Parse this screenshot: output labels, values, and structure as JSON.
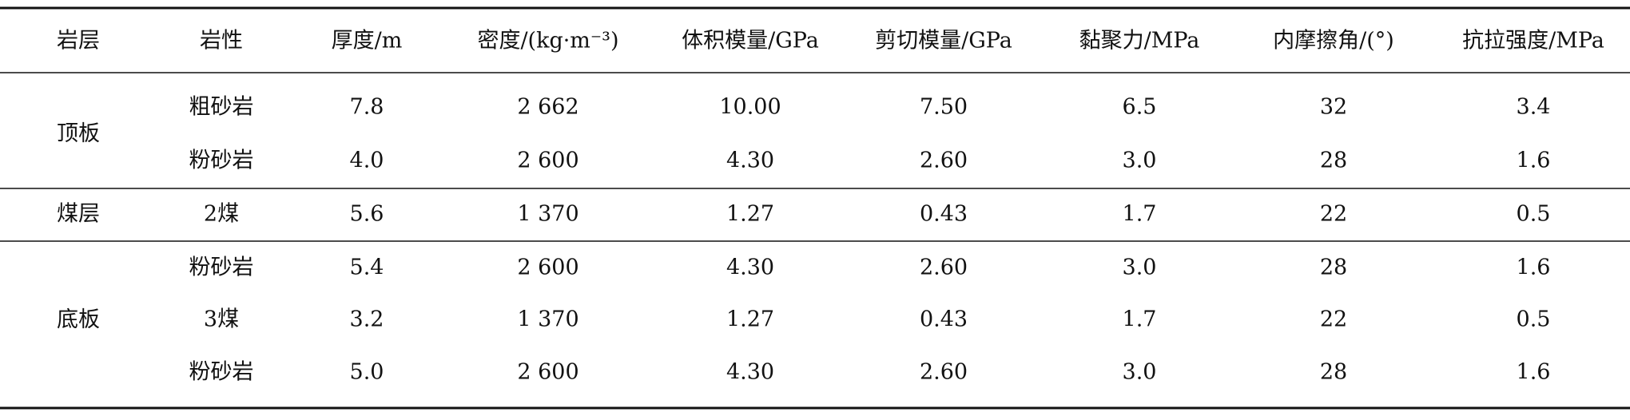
{
  "table": {
    "header": [
      "岩层",
      "岩性",
      "厚度/m",
      "密度/(kg·m⁻³)",
      "体积模量/GPa",
      "剪切模量/GPa",
      "黏聚力/MPa",
      "内摩擦角/(°)",
      "抗拉强度/MPa"
    ],
    "groups": [
      {
        "name": "顶板",
        "rows": [
          [
            "粗砂岩",
            "7.8",
            "2 662",
            "10.00",
            "7.50",
            "6.5",
            "32",
            "3.4"
          ],
          [
            "粉砂岩",
            "4.0",
            "2 600",
            "4.30",
            "2.60",
            "3.0",
            "28",
            "1.6"
          ]
        ]
      },
      {
        "name": "煤层",
        "rows": [
          [
            "2煤",
            "5.6",
            "1 370",
            "1.27",
            "0.43",
            "1.7",
            "22",
            "0.5"
          ]
        ]
      },
      {
        "name": "底板",
        "rows": [
          [
            "粉砂岩",
            "5.4",
            "2 600",
            "4.30",
            "2.60",
            "3.0",
            "28",
            "1.6"
          ],
          [
            "3煤",
            "3.2",
            "1 370",
            "1.27",
            "0.43",
            "1.7",
            "22",
            "0.5"
          ],
          [
            "粉砂岩",
            "5.0",
            "2 600",
            "4.30",
            "2.60",
            "3.0",
            "28",
            "1.6"
          ]
        ]
      }
    ]
  }
}
